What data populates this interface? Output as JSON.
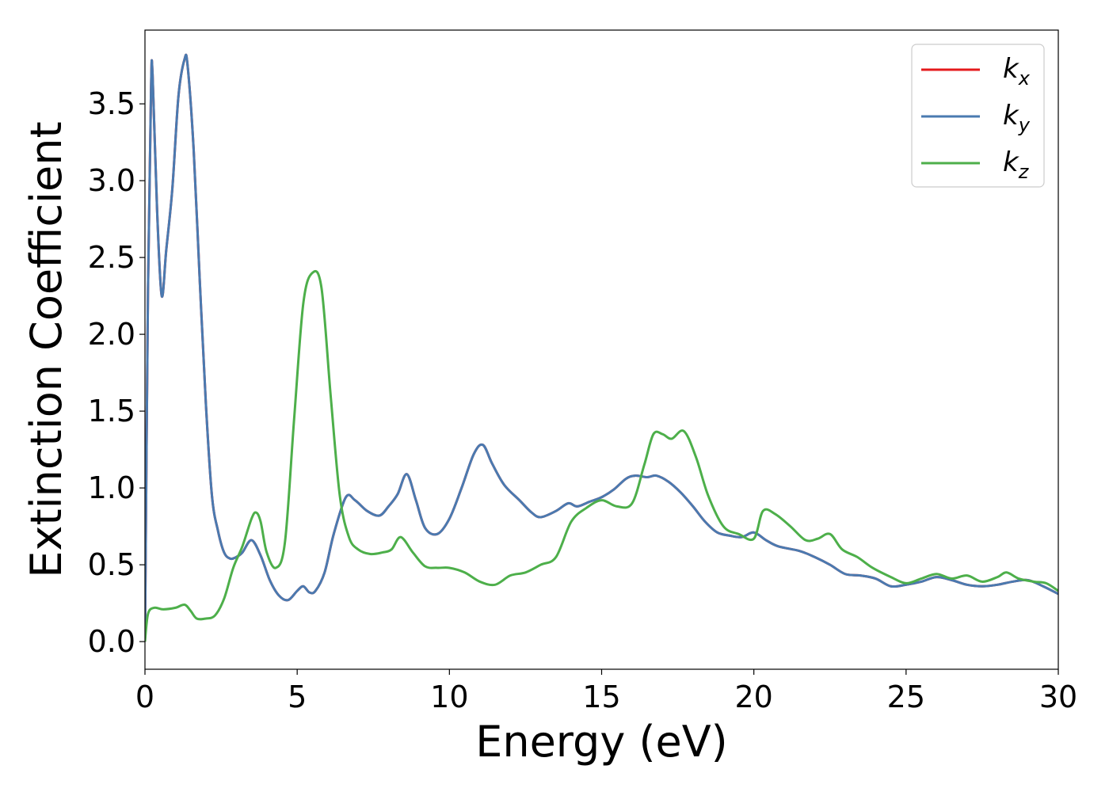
{
  "chart_data": {
    "type": "line",
    "title": "",
    "xlabel": "Energy (eV)",
    "ylabel": "Extinction Coefficient",
    "xlim": [
      0,
      30
    ],
    "ylim": [
      -0.18,
      3.98
    ],
    "x_ticks": [
      "0",
      "5",
      "10",
      "15",
      "20",
      "25",
      "30"
    ],
    "y_ticks": [
      "0.0",
      "0.5",
      "1.0",
      "1.5",
      "2.0",
      "2.5",
      "3.0",
      "3.5"
    ],
    "grid": false,
    "legend_position": "top-right",
    "series": [
      {
        "name": "k",
        "name_sub": "x",
        "color": "#e41a1c",
        "x": [
          0,
          0.1,
          0.2,
          0.25,
          0.4,
          0.55,
          0.7,
          0.9,
          1.1,
          1.3,
          1.4,
          1.6,
          1.8,
          2.0,
          2.2,
          2.4,
          2.6,
          2.8,
          3.0,
          3.2,
          3.5,
          3.8,
          4.1,
          4.4,
          4.7,
          5.0,
          5.2,
          5.4,
          5.6,
          5.9,
          6.2,
          6.6,
          6.9,
          7.3,
          7.7,
          8.0,
          8.3,
          8.6,
          8.9,
          9.2,
          9.6,
          10.0,
          10.4,
          10.8,
          11.1,
          11.4,
          11.8,
          12.3,
          12.7,
          13.0,
          13.5,
          13.9,
          14.2,
          14.6,
          15.0,
          15.4,
          15.8,
          16.1,
          16.5,
          16.8,
          17.2,
          17.6,
          18.0,
          18.4,
          18.8,
          19.2,
          19.6,
          20.0,
          20.4,
          20.8,
          21.5,
          22.0,
          22.5,
          23.0,
          23.5,
          24.0,
          24.5,
          25.0,
          25.5,
          26.0,
          26.5,
          27.0,
          27.5,
          28.0,
          28.5,
          29.0,
          29.5,
          30.0
        ],
        "y": [
          0.0,
          2.3,
          3.6,
          3.69,
          2.8,
          2.25,
          2.55,
          2.95,
          3.55,
          3.79,
          3.75,
          3.2,
          2.35,
          1.55,
          0.95,
          0.72,
          0.58,
          0.54,
          0.55,
          0.58,
          0.66,
          0.56,
          0.4,
          0.3,
          0.27,
          0.33,
          0.36,
          0.32,
          0.33,
          0.45,
          0.7,
          0.94,
          0.92,
          0.85,
          0.82,
          0.88,
          0.96,
          1.09,
          0.92,
          0.74,
          0.7,
          0.8,
          1.0,
          1.22,
          1.28,
          1.16,
          1.02,
          0.92,
          0.84,
          0.81,
          0.85,
          0.9,
          0.88,
          0.91,
          0.94,
          0.99,
          1.06,
          1.08,
          1.07,
          1.08,
          1.04,
          0.97,
          0.88,
          0.78,
          0.71,
          0.69,
          0.68,
          0.71,
          0.66,
          0.62,
          0.59,
          0.55,
          0.5,
          0.44,
          0.43,
          0.41,
          0.36,
          0.37,
          0.39,
          0.42,
          0.4,
          0.37,
          0.36,
          0.37,
          0.39,
          0.4,
          0.36,
          0.31
        ]
      },
      {
        "name": "k",
        "name_sub": "y",
        "color": "#4a7ab0",
        "x": [
          0,
          0.1,
          0.2,
          0.25,
          0.4,
          0.55,
          0.7,
          0.9,
          1.1,
          1.3,
          1.4,
          1.6,
          1.8,
          2.0,
          2.2,
          2.4,
          2.6,
          2.8,
          3.0,
          3.2,
          3.5,
          3.8,
          4.1,
          4.4,
          4.7,
          5.0,
          5.2,
          5.4,
          5.6,
          5.9,
          6.2,
          6.6,
          6.9,
          7.3,
          7.7,
          8.0,
          8.3,
          8.6,
          8.9,
          9.2,
          9.6,
          10.0,
          10.4,
          10.8,
          11.1,
          11.4,
          11.8,
          12.3,
          12.7,
          13.0,
          13.5,
          13.9,
          14.2,
          14.6,
          15.0,
          15.4,
          15.8,
          16.1,
          16.5,
          16.8,
          17.2,
          17.6,
          18.0,
          18.4,
          18.8,
          19.2,
          19.6,
          20.0,
          20.4,
          20.8,
          21.5,
          22.0,
          22.5,
          23.0,
          23.5,
          24.0,
          24.5,
          25.0,
          25.5,
          26.0,
          26.5,
          27.0,
          27.5,
          28.0,
          28.5,
          29.0,
          29.5,
          30.0
        ],
        "y": [
          0.0,
          2.3,
          3.6,
          3.69,
          2.8,
          2.25,
          2.55,
          2.95,
          3.55,
          3.79,
          3.75,
          3.2,
          2.35,
          1.55,
          0.95,
          0.72,
          0.58,
          0.54,
          0.55,
          0.58,
          0.66,
          0.56,
          0.4,
          0.3,
          0.27,
          0.33,
          0.36,
          0.32,
          0.33,
          0.45,
          0.7,
          0.94,
          0.92,
          0.85,
          0.82,
          0.88,
          0.96,
          1.09,
          0.92,
          0.74,
          0.7,
          0.8,
          1.0,
          1.22,
          1.28,
          1.16,
          1.02,
          0.92,
          0.84,
          0.81,
          0.85,
          0.9,
          0.88,
          0.91,
          0.94,
          0.99,
          1.06,
          1.08,
          1.07,
          1.08,
          1.04,
          0.97,
          0.88,
          0.78,
          0.71,
          0.69,
          0.68,
          0.71,
          0.66,
          0.62,
          0.59,
          0.55,
          0.5,
          0.44,
          0.43,
          0.41,
          0.36,
          0.37,
          0.39,
          0.42,
          0.4,
          0.37,
          0.36,
          0.37,
          0.39,
          0.4,
          0.36,
          0.31
        ]
      },
      {
        "name": "k",
        "name_sub": "z",
        "color": "#4daf4a",
        "x": [
          0,
          0.1,
          0.3,
          0.6,
          1.0,
          1.3,
          1.5,
          1.7,
          2.0,
          2.3,
          2.6,
          2.9,
          3.2,
          3.5,
          3.65,
          3.8,
          4.0,
          4.3,
          4.6,
          4.9,
          5.2,
          5.5,
          5.8,
          6.1,
          6.4,
          6.7,
          7.0,
          7.4,
          7.8,
          8.1,
          8.4,
          8.8,
          9.2,
          9.6,
          10.0,
          10.5,
          11.0,
          11.5,
          12.0,
          12.5,
          13.0,
          13.5,
          14.0,
          14.5,
          15.0,
          15.5,
          16.0,
          16.4,
          16.7,
          17.0,
          17.3,
          17.7,
          18.1,
          18.5,
          19.0,
          19.5,
          20.0,
          20.3,
          20.7,
          21.2,
          21.7,
          22.1,
          22.5,
          22.9,
          23.4,
          23.9,
          24.5,
          25.0,
          25.5,
          26.0,
          26.5,
          27.0,
          27.5,
          28.0,
          28.3,
          28.7,
          29.2,
          29.6,
          30.0
        ],
        "y": [
          0.0,
          0.18,
          0.22,
          0.21,
          0.22,
          0.24,
          0.2,
          0.15,
          0.15,
          0.17,
          0.28,
          0.48,
          0.62,
          0.8,
          0.84,
          0.78,
          0.58,
          0.48,
          0.65,
          1.45,
          2.2,
          2.4,
          2.3,
          1.6,
          0.95,
          0.68,
          0.6,
          0.57,
          0.58,
          0.6,
          0.68,
          0.58,
          0.49,
          0.48,
          0.48,
          0.45,
          0.39,
          0.37,
          0.43,
          0.45,
          0.5,
          0.55,
          0.78,
          0.87,
          0.92,
          0.88,
          0.9,
          1.15,
          1.35,
          1.35,
          1.32,
          1.37,
          1.2,
          0.95,
          0.75,
          0.7,
          0.67,
          0.85,
          0.83,
          0.75,
          0.66,
          0.67,
          0.7,
          0.6,
          0.55,
          0.48,
          0.42,
          0.38,
          0.41,
          0.44,
          0.41,
          0.43,
          0.39,
          0.42,
          0.45,
          0.41,
          0.39,
          0.38,
          0.33
        ]
      }
    ]
  }
}
